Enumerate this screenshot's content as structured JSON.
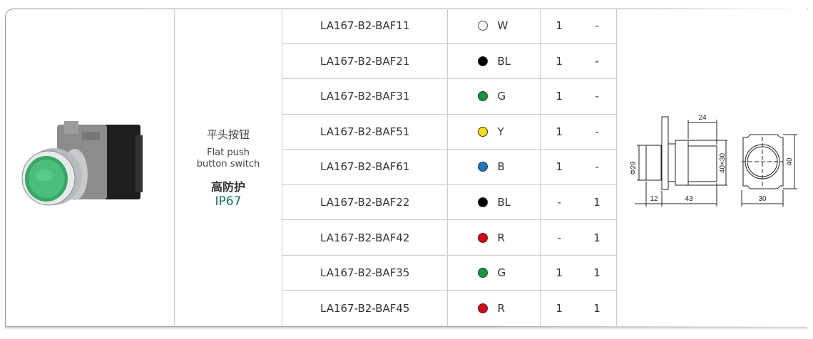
{
  "product": {
    "name_cn": "平头按钮",
    "name_en_line1": "Flat push",
    "name_en_line2": "button switch",
    "protection_cn": "高防护",
    "protection_rating": "IP67",
    "accent_color": "#0a7a52"
  },
  "models": [
    {
      "model": "LA167-B2-BAF11",
      "color_code": "W",
      "color_hex": "#f4f6f8",
      "no": "1",
      "nc": "-"
    },
    {
      "model": "LA167-B2-BAF21",
      "color_code": "BL",
      "color_hex": "#000000",
      "no": "1",
      "nc": "-"
    },
    {
      "model": "LA167-B2-BAF31",
      "color_code": "G",
      "color_hex": "#0e9a3c",
      "no": "1",
      "nc": "-"
    },
    {
      "model": "LA167-B2-BAF51",
      "color_code": "Y",
      "color_hex": "#ffe000",
      "no": "1",
      "nc": "-"
    },
    {
      "model": "LA167-B2-BAF61",
      "color_code": "B",
      "color_hex": "#1a78c8",
      "no": "1",
      "nc": "-"
    },
    {
      "model": "LA167-B2-BAF22",
      "color_code": "BL",
      "color_hex": "#000000",
      "no": "-",
      "nc": "1"
    },
    {
      "model": "LA167-B2-BAF42",
      "color_code": "R",
      "color_hex": "#e00012",
      "no": "-",
      "nc": "1"
    },
    {
      "model": "LA167-B2-BAF35",
      "color_code": "G",
      "color_hex": "#0e9a3c",
      "no": "1",
      "nc": "1"
    },
    {
      "model": "LA167-B2-BAF45",
      "color_code": "R",
      "color_hex": "#e00012",
      "no": "1",
      "nc": "1"
    }
  ],
  "dimensions": {
    "diameter": "Φ29",
    "front_length": "12",
    "body_length": "43",
    "rear_length": "24",
    "body_section": "40×30",
    "width": "30",
    "height": "40"
  }
}
